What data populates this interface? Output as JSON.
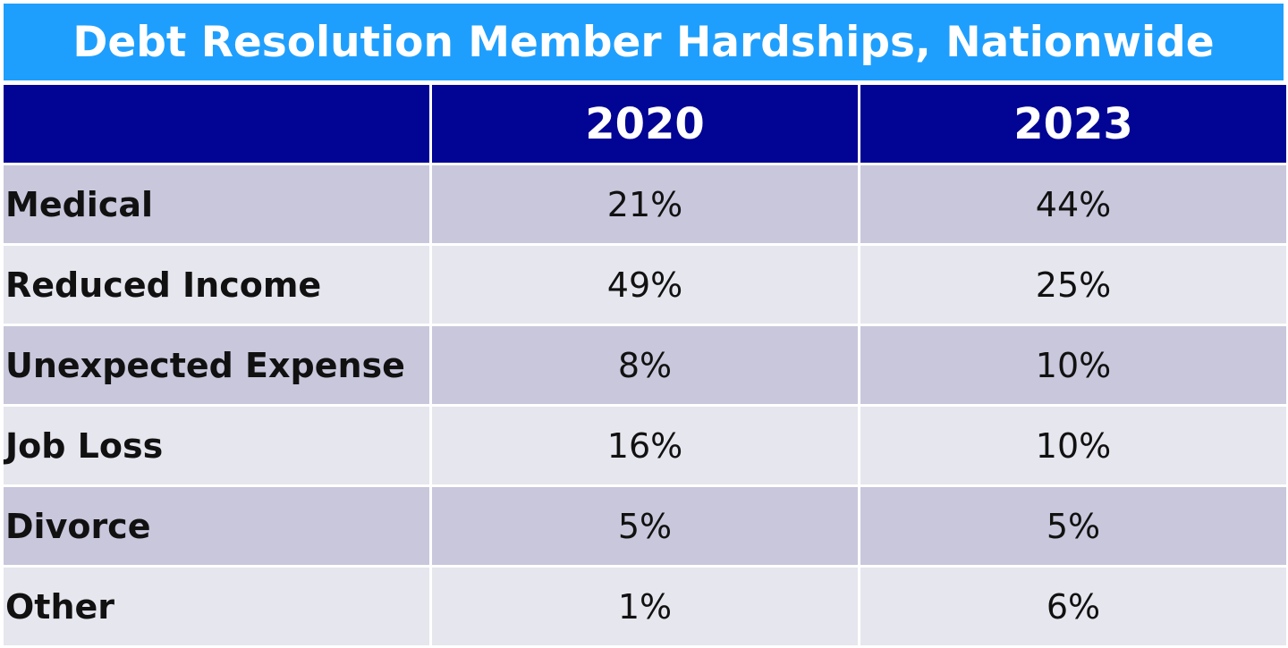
{
  "title": "Debt Resolution Member Hardships, Nationwide",
  "colors": {
    "title_bar": "#1f9ffd",
    "header": "#020494",
    "row_dark": "#c8c7dc",
    "row_light": "#e6e6ee"
  },
  "chart_data": {
    "type": "table",
    "title": "Debt Resolution Member Hardships, Nationwide",
    "columns": [
      "",
      "2020",
      "2023"
    ],
    "rows": [
      {
        "label": "Medical",
        "y2020": "21%",
        "y2023": "44%"
      },
      {
        "label": "Reduced Income",
        "y2020": "49%",
        "y2023": "25%"
      },
      {
        "label": "Unexpected Expense",
        "y2020": "8%",
        "y2023": "10%"
      },
      {
        "label": "Job Loss",
        "y2020": "16%",
        "y2023": "10%"
      },
      {
        "label": "Divorce",
        "y2020": "5%",
        "y2023": "5%"
      },
      {
        "label": "Other",
        "y2020": "1%",
        "y2023": "6%"
      }
    ]
  }
}
